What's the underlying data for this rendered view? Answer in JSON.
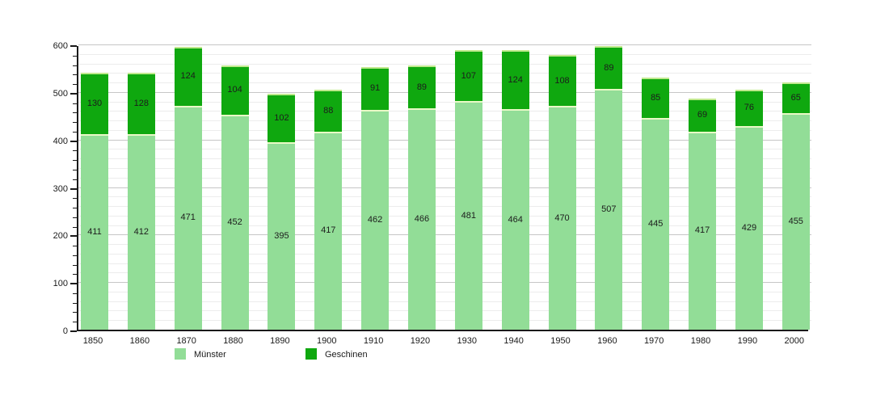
{
  "chart_data": {
    "type": "bar",
    "stacked": true,
    "title": "",
    "categories": [
      "1850",
      "1860",
      "1870",
      "1880",
      "1890",
      "1900",
      "1910",
      "1920",
      "1930",
      "1940",
      "1950",
      "1960",
      "1970",
      "1980",
      "1990",
      "2000"
    ],
    "series": [
      {
        "name": "Münster",
        "color": "#92dd97",
        "values": [
          411,
          412,
          471,
          452,
          395,
          417,
          462,
          466,
          481,
          464,
          470,
          507,
          445,
          417,
          429,
          455
        ]
      },
      {
        "name": "Geschinen",
        "color": "#0fa80f",
        "values": [
          130,
          128,
          124,
          104,
          102,
          88,
          91,
          89,
          107,
          124,
          108,
          89,
          85,
          69,
          76,
          65
        ]
      }
    ],
    "totals": [
      541,
      540,
      595,
      556,
      497,
      505,
      553,
      555,
      588,
      588,
      578,
      596,
      530,
      486,
      505,
      520
    ],
    "xlabel": "",
    "ylabel": "",
    "ylim": [
      0,
      600
    ],
    "ytick_labels": [
      "0",
      "100",
      "200",
      "300",
      "400",
      "500",
      "600"
    ],
    "ytick_major_step": 100,
    "ytick_minor_step": 20,
    "grid": {
      "enabled": true,
      "major_color": "#c6c6c6",
      "minor_color": "#ececec"
    },
    "value_labels": true,
    "legend": {
      "position": "bottom"
    }
  }
}
